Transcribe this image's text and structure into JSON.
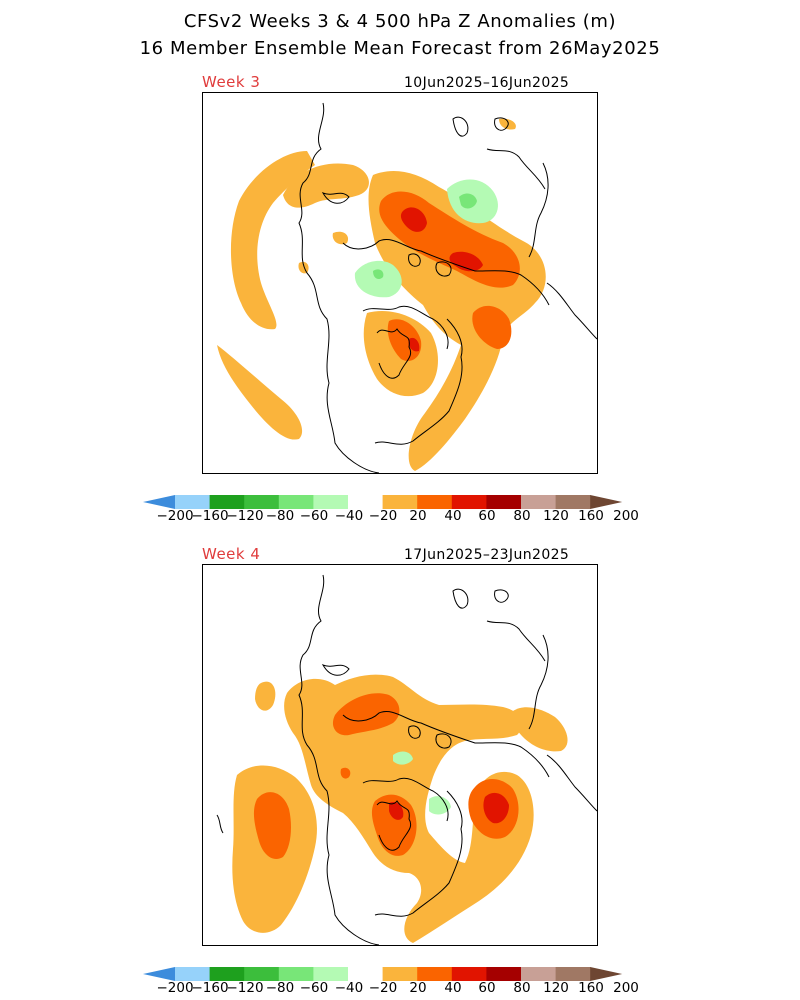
{
  "title_line1": "CFSv2 Weeks 3 & 4 500 hPa Z Anomalies (m)",
  "title_line2": "16 Member Ensemble Mean Forecast from 26May2025",
  "panels": [
    {
      "label": "Week 3",
      "dates": "10Jun2025–16Jun2025"
    },
    {
      "label": "Week 4",
      "dates": "17Jun2025–23Jun2025"
    }
  ],
  "colorbar": {
    "ticks": [
      "−200",
      "−160",
      "−120",
      "−80",
      "−60",
      "−40",
      "−20",
      "20",
      "40",
      "60",
      "80",
      "120",
      "160",
      "200"
    ],
    "colors": [
      "#3c8cdc",
      "#96d2fa",
      "#1ea01e",
      "#3cbe3c",
      "#78e678",
      "#b4fab4",
      "#ffffff",
      "#fab43c",
      "#fa6400",
      "#e11400",
      "#a50000",
      "#c8a096",
      "#a07864",
      "#6e4632"
    ]
  }
}
